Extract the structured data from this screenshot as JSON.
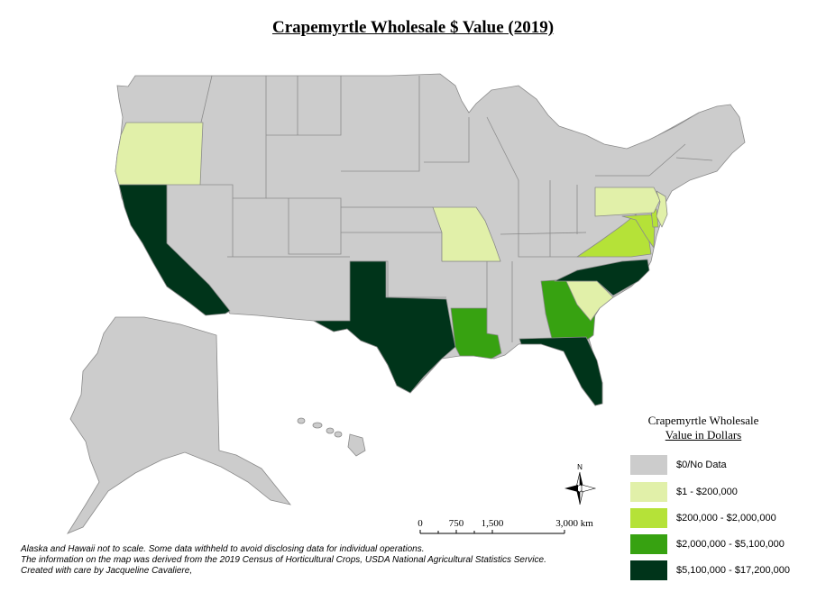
{
  "title": "Crapemyrtle Wholesale $ Value (2019)",
  "legend": {
    "title_line1": "Crapemyrtle Wholesale",
    "title_line2": "Value in Dollars",
    "items": [
      {
        "label": "$0/No Data",
        "color": "#cccccc"
      },
      {
        "label": "$1 - $200,000",
        "color": "#e1f0a9"
      },
      {
        "label": "$200,000 - $2,000,000",
        "color": "#b5e238"
      },
      {
        "label": "$2,000,000 - $5,100,000",
        "color": "#37a211"
      },
      {
        "label": "$5,100,000 - $17,200,000",
        "color": "#00341a"
      }
    ]
  },
  "state_classes": {
    "Oregon": 1,
    "Missouri": 1,
    "Pennsylvania": 1,
    "New Jersey": 1,
    "South Carolina": 1,
    "Virginia": 2,
    "Maryland": 2,
    "Delaware": 2,
    "Georgia": 3,
    "Louisiana": 3,
    "California": 4,
    "Texas": 4,
    "Florida": 4,
    "North Carolina": 4
  },
  "north_arrow": {
    "label": "N"
  },
  "scale_bar": {
    "ticks": [
      "0",
      "750",
      "1,500",
      "3,000 km"
    ]
  },
  "notes": [
    "Alaska and Hawaii not to scale. Some data withheld to avoid disclosing data for individual operations.",
    "The information on the map was derived from the 2019 Census of Horticultural Crops, USDA National Agricultural Statistics Service.",
    "Created with care by Jacqueline Cavaliere,"
  ]
}
